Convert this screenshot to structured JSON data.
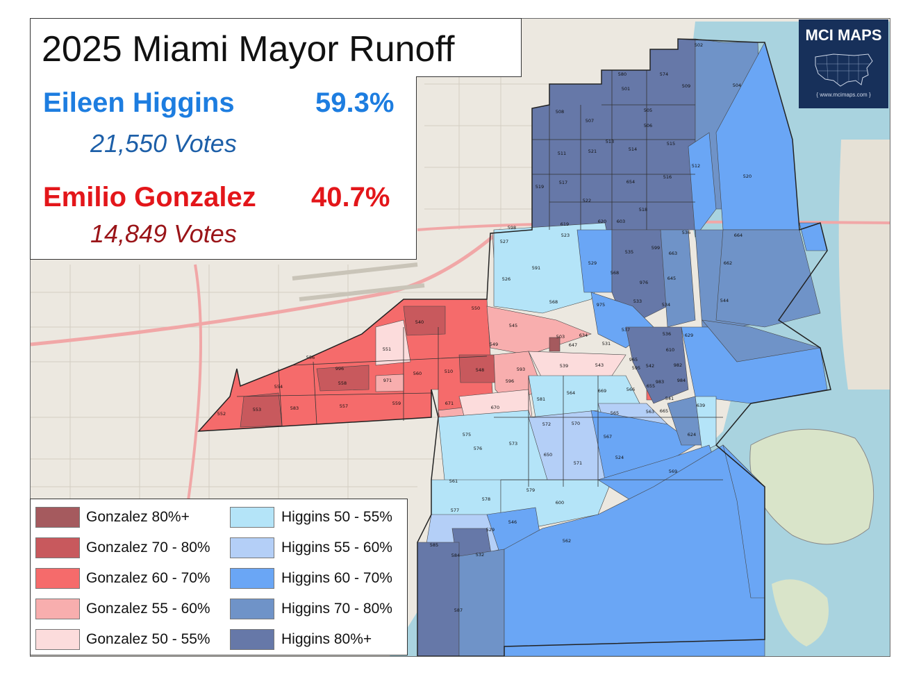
{
  "title": "2025 Miami Mayor Runoff",
  "candidates": [
    {
      "name": "Eileen Higgins",
      "percent": "59.3%",
      "votes": "21,550  Votes",
      "color": "#1d7de0"
    },
    {
      "name": "Emilio Gonzalez",
      "percent": "40.7%",
      "votes": "14,849  Votes",
      "color": "#e3161a"
    }
  ],
  "logo": {
    "text": "MCI MAPS",
    "url": "{ www.mcimaps.com }",
    "icon": "usa-map-icon"
  },
  "legend": [
    {
      "label": "Gonzalez 80%+",
      "color": "#a55a5e"
    },
    {
      "label": "Gonzalez 70 - 80%",
      "color": "#c8595d"
    },
    {
      "label": "Gonzalez 60 - 70%",
      "color": "#f56b6b"
    },
    {
      "label": "Gonzalez 55 - 60%",
      "color": "#f8aeae"
    },
    {
      "label": "Gonzalez 50 - 55%",
      "color": "#fcdcdc"
    },
    {
      "label": "Higgins 50 - 55%",
      "color": "#b4e4f8"
    },
    {
      "label": "Higgins 55 - 60%",
      "color": "#b4cff7"
    },
    {
      "label": "Higgins 60 - 70%",
      "color": "#6aa6f5"
    },
    {
      "label": "Higgins 70 - 80%",
      "color": "#6f93c8"
    },
    {
      "label": "Higgins 80%+",
      "color": "#6678a8"
    }
  ],
  "precinct_labels": [
    "502",
    "580",
    "574",
    "501",
    "509",
    "504",
    "508",
    "507",
    "505",
    "506",
    "513",
    "511",
    "521",
    "514",
    "515",
    "512",
    "520",
    "519",
    "517",
    "654",
    "516",
    "522",
    "518",
    "619",
    "620",
    "603",
    "598",
    "527",
    "523",
    "536",
    "664",
    "529",
    "535",
    "599",
    "663",
    "662",
    "591",
    "526",
    "568",
    "976",
    "645",
    "544",
    "568",
    "975",
    "533",
    "534",
    "550",
    "540",
    "545",
    "503",
    "647",
    "634",
    "531",
    "537",
    "536",
    "629",
    "551",
    "549",
    "556",
    "996",
    "510",
    "548",
    "539",
    "543",
    "965",
    "542",
    "610",
    "982",
    "560",
    "596",
    "593",
    "595",
    "554",
    "558",
    "971",
    "655",
    "983",
    "984",
    "563",
    "552",
    "553",
    "583",
    "557",
    "559",
    "671",
    "670",
    "581",
    "564",
    "669",
    "566",
    "541",
    "665",
    "639",
    "565",
    "575",
    "572",
    "570",
    "567",
    "624",
    "576",
    "573",
    "650",
    "571",
    "524",
    "561",
    "578",
    "579",
    "600",
    "569",
    "577",
    "546",
    "529",
    "585",
    "532",
    "584",
    "562",
    "587"
  ]
}
